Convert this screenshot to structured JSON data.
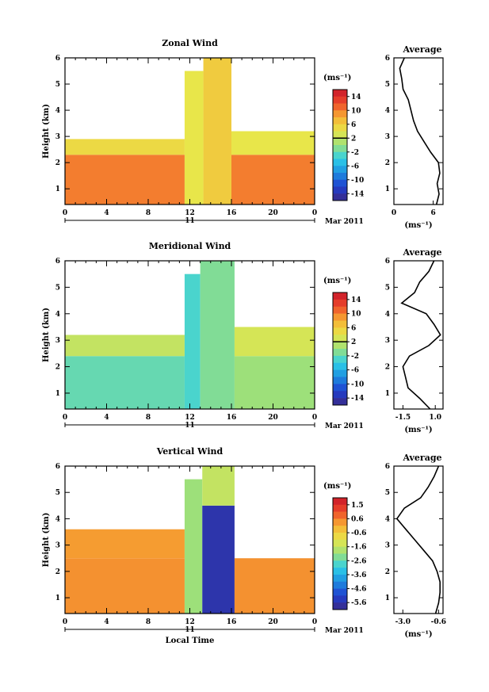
{
  "chart_data": [
    {
      "type": "heatmap",
      "title": "Zonal Wind",
      "ylabel": "Height (km)",
      "xlabel": "",
      "x_ticks": [
        "0",
        "4",
        "8",
        "12",
        "16",
        "20",
        "0"
      ],
      "y_ticks": [
        "1",
        "2",
        "3",
        "4",
        "5",
        "6"
      ],
      "xlim": [
        0,
        24
      ],
      "ylim": [
        0.4,
        6
      ],
      "day_label": "11",
      "date_label": "Mar 2011",
      "colorbar": {
        "unit": "(ms⁻¹)",
        "tick_labels": [
          "14",
          "10",
          "6",
          "2",
          "-2",
          "-6",
          "-10",
          "-14"
        ],
        "range": [
          -16,
          16
        ],
        "zero_line": 2
      },
      "regions": [
        {
          "x": [
            0,
            11.5
          ],
          "y": [
            0.4,
            2.3
          ],
          "value": 10
        },
        {
          "x": [
            0,
            11.5
          ],
          "y": [
            2.3,
            2.9
          ],
          "value": 5
        },
        {
          "x": [
            11.5,
            13.3
          ],
          "y": [
            0.4,
            5.5
          ],
          "value": 4
        },
        {
          "x": [
            13.3,
            16
          ],
          "y": [
            0.4,
            6
          ],
          "value": 6
        },
        {
          "x": [
            16,
            24
          ],
          "y": [
            0.4,
            2.3
          ],
          "value": 10
        },
        {
          "x": [
            16,
            24
          ],
          "y": [
            2.3,
            3.2
          ],
          "value": 4
        }
      ],
      "average": {
        "title": "Average",
        "xlabel": "(ms⁻¹)",
        "x_ticks": [
          "0",
          "6"
        ],
        "xlim": [
          0,
          7.5
        ],
        "height": [
          0.4,
          0.8,
          1.2,
          1.6,
          2.0,
          2.4,
          2.8,
          3.2,
          3.6,
          4.0,
          4.4,
          4.8,
          5.2,
          5.6,
          6.0
        ],
        "values": [
          6.5,
          6.9,
          6.6,
          7.0,
          6.8,
          5.6,
          4.6,
          3.6,
          3.0,
          2.6,
          2.2,
          1.4,
          1.2,
          0.9,
          1.6
        ]
      }
    },
    {
      "type": "heatmap",
      "title": "Meridional Wind",
      "ylabel": "Height (km)",
      "xlabel": "",
      "x_ticks": [
        "0",
        "4",
        "8",
        "12",
        "16",
        "20",
        "0"
      ],
      "y_ticks": [
        "1",
        "2",
        "3",
        "4",
        "5",
        "6"
      ],
      "xlim": [
        0,
        24
      ],
      "ylim": [
        0.4,
        6
      ],
      "day_label": "11",
      "date_label": "Mar 2011",
      "colorbar": {
        "unit": "(ms⁻¹)",
        "tick_labels": [
          "14",
          "10",
          "6",
          "2",
          "-2",
          "-6",
          "-10",
          "-14"
        ],
        "range": [
          -16,
          16
        ],
        "zero_line": 2
      },
      "regions": [
        {
          "x": [
            0,
            11.5
          ],
          "y": [
            0.4,
            2.4
          ],
          "value": -2
        },
        {
          "x": [
            0,
            11.5
          ],
          "y": [
            2.4,
            3.2
          ],
          "value": 2
        },
        {
          "x": [
            11.5,
            13.0
          ],
          "y": [
            0.4,
            5.5
          ],
          "value": -3
        },
        {
          "x": [
            13.0,
            16.3
          ],
          "y": [
            0.4,
            6
          ],
          "value": -1
        },
        {
          "x": [
            16.3,
            24
          ],
          "y": [
            0.4,
            2.4
          ],
          "value": 0
        },
        {
          "x": [
            16.3,
            24
          ],
          "y": [
            2.4,
            3.5
          ],
          "value": 3
        }
      ],
      "average": {
        "title": "Average",
        "xlabel": "(ms⁻¹)",
        "x_ticks": [
          "-1.5",
          "1.0"
        ],
        "xlim": [
          -2.2,
          1.6
        ],
        "height": [
          0.4,
          0.8,
          1.2,
          1.6,
          2.0,
          2.4,
          2.8,
          3.2,
          3.6,
          4.0,
          4.4,
          4.8,
          5.2,
          5.6,
          6.0
        ],
        "values": [
          0.6,
          -0.2,
          -1.1,
          -1.3,
          -1.5,
          -1.0,
          0.5,
          1.4,
          0.9,
          0.3,
          -1.6,
          -0.6,
          -0.2,
          0.5,
          0.9
        ]
      }
    },
    {
      "type": "heatmap",
      "title": "Vertical Wind",
      "ylabel": "Height (km)",
      "xlabel": "Local Time",
      "x_ticks": [
        "0",
        "4",
        "8",
        "12",
        "16",
        "20",
        "0"
      ],
      "y_ticks": [
        "1",
        "2",
        "3",
        "4",
        "5",
        "6"
      ],
      "xlim": [
        0,
        24
      ],
      "ylim": [
        0.4,
        6
      ],
      "day_label": "11",
      "date_label": "Mar 2011",
      "colorbar": {
        "unit": "(ms⁻¹)",
        "tick_labels": [
          "1.5",
          "0.6",
          "-0.6",
          "-1.6",
          "-2.6",
          "-3.6",
          "-4.6",
          "-5.6"
        ],
        "range": [
          -6,
          2
        ],
        "zero_line": null
      },
      "regions": [
        {
          "x": [
            0,
            11.5
          ],
          "y": [
            0.4,
            2.5
          ],
          "value": 0.3
        },
        {
          "x": [
            0,
            11.5
          ],
          "y": [
            2.5,
            3.6
          ],
          "value": 0.2
        },
        {
          "x": [
            11.5,
            13.2
          ],
          "y": [
            0.4,
            5.5
          ],
          "value": -2.0
        },
        {
          "x": [
            13.2,
            16.3
          ],
          "y": [
            0.4,
            4.5
          ],
          "value": -5.5
        },
        {
          "x": [
            13.2,
            16.3
          ],
          "y": [
            4.5,
            6
          ],
          "value": -1.5
        },
        {
          "x": [
            16.3,
            24
          ],
          "y": [
            0.4,
            2.5
          ],
          "value": 0.3
        }
      ],
      "average": {
        "title": "Average",
        "xlabel": "(ms⁻¹)",
        "x_ticks": [
          "-3.0",
          "-0.6"
        ],
        "xlim": [
          -3.6,
          -0.3
        ],
        "height": [
          0.4,
          0.8,
          1.2,
          1.6,
          2.0,
          2.4,
          2.8,
          3.2,
          3.6,
          4.0,
          4.4,
          4.8,
          5.2,
          5.6,
          6.0
        ],
        "values": [
          -0.8,
          -0.6,
          -0.5,
          -0.5,
          -0.7,
          -1.0,
          -1.6,
          -2.2,
          -2.8,
          -3.4,
          -2.9,
          -1.8,
          -1.3,
          -0.9,
          -0.6
        ]
      }
    }
  ]
}
